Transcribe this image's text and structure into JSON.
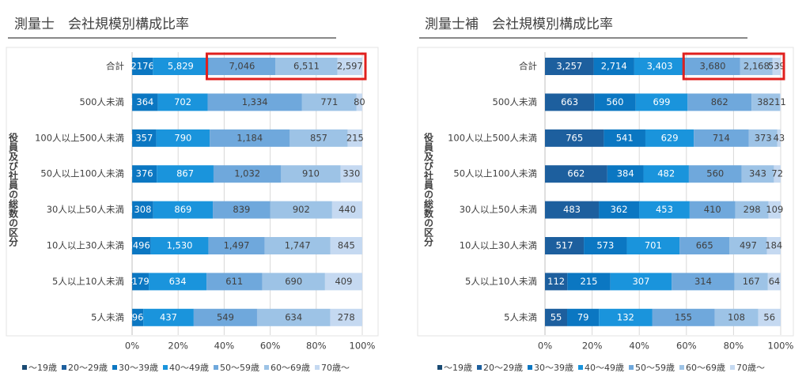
{
  "chart_data": [
    {
      "type": "stacked-bar-100",
      "title": "測量士　会社規模別構成比率",
      "y_label": "役員及び社員の総数の区分",
      "categories": [
        "合計",
        "500人未満",
        "100人以上500人未満",
        "50人以上100人未満",
        "30人以上50人未満",
        "10人以上30人未満",
        "5人以上10人未満",
        "5人未満"
      ],
      "xlim": [
        0,
        100
      ],
      "xticks": [
        {
          "value": 0,
          "label": "0%"
        },
        {
          "value": 20,
          "label": "20%"
        },
        {
          "value": 40,
          "label": "40%"
        },
        {
          "value": 60,
          "label": "60%"
        },
        {
          "value": 80,
          "label": "80%"
        },
        {
          "value": 100,
          "label": "100%"
        }
      ],
      "grid": true,
      "series": [
        {
          "name": "～19歳",
          "color": "#1a4a73",
          "values": [
            null,
            null,
            null,
            null,
            null,
            null,
            null,
            null
          ]
        },
        {
          "name": "20～29歳",
          "color": "#1d5f9e",
          "values": [
            8,
            1,
            1,
            1,
            1,
            1,
            4,
            1
          ]
        },
        {
          "name": "30～39歳",
          "color": "#0b77c2",
          "values": [
            2176,
            364,
            357,
            376,
            308,
            496,
            179,
            96
          ]
        },
        {
          "name": "40～49歳",
          "color": "#1a94dc",
          "values": [
            5829,
            702,
            790,
            867,
            869,
            1530,
            634,
            437
          ],
          "value_labels": [
            "5,829",
            "702",
            "790",
            "867",
            "869",
            "1,530",
            "634",
            "437"
          ]
        },
        {
          "name": "50～59歳",
          "color": "#6fa8dc",
          "values": [
            7046,
            1334,
            1184,
            1032,
            839,
            1497,
            611,
            549
          ],
          "value_labels": [
            "7,046",
            "1,334",
            "1,184",
            "1,032",
            "839",
            "1,497",
            "611",
            "549"
          ]
        },
        {
          "name": "60～69歳",
          "color": "#9dc3e6",
          "values": [
            6511,
            771,
            857,
            910,
            902,
            1747,
            690,
            634
          ],
          "value_labels": [
            "6,511",
            "771",
            "857",
            "910",
            "902",
            "1,747",
            "690",
            "634"
          ]
        },
        {
          "name": "70歳～",
          "color": "#c5d9f1",
          "values": [
            2597,
            80,
            215,
            330,
            440,
            845,
            409,
            278
          ],
          "value_labels": [
            "2,597",
            "80",
            "215",
            "330",
            "440",
            "845",
            "409",
            "278"
          ]
        }
      ]
    },
    {
      "type": "stacked-bar-100",
      "title": "測量士補　会社規模別構成比率",
      "y_label": "役員及び社員の総数の区分",
      "categories": [
        "合計",
        "500人未満",
        "100人以上500人未満",
        "50人以上100人未満",
        "30人以上50人未満",
        "10人以上30人未満",
        "5人以上10人未満",
        "5人未満"
      ],
      "xlim": [
        0,
        100
      ],
      "xticks": [
        {
          "value": 0,
          "label": "0%"
        },
        {
          "value": 20,
          "label": "20%"
        },
        {
          "value": 40,
          "label": "40%"
        },
        {
          "value": 60,
          "label": "60%"
        },
        {
          "value": 80,
          "label": "80%"
        },
        {
          "value": 100,
          "label": "100%"
        }
      ],
      "grid": true,
      "series": [
        {
          "name": "～19歳",
          "color": "#1a4a73",
          "values": [
            null,
            null,
            null,
            null,
            null,
            null,
            null,
            null
          ]
        },
        {
          "name": "20～29歳",
          "color": "#1d5f9e",
          "values": [
            3257,
            663,
            765,
            662,
            483,
            517,
            112,
            55
          ],
          "value_labels": [
            "3,257",
            "663",
            "765",
            "662",
            "483",
            "517",
            "112",
            "55"
          ]
        },
        {
          "name": "30～39歳",
          "color": "#0b77c2",
          "values": [
            2714,
            560,
            541,
            384,
            362,
            573,
            215,
            79
          ],
          "value_labels": [
            "2,714",
            "560",
            "541",
            "384",
            "362",
            "573",
            "215",
            "79"
          ]
        },
        {
          "name": "40～49歳",
          "color": "#1a94dc",
          "values": [
            3403,
            699,
            629,
            482,
            453,
            701,
            307,
            132
          ],
          "value_labels": [
            "3,403",
            "699",
            "629",
            "482",
            "453",
            "701",
            "307",
            "132"
          ]
        },
        {
          "name": "50～59歳",
          "color": "#6fa8dc",
          "values": [
            3680,
            862,
            714,
            560,
            410,
            665,
            314,
            155
          ],
          "value_labels": [
            "3,680",
            "862",
            "714",
            "560",
            "410",
            "665",
            "314",
            "155"
          ]
        },
        {
          "name": "60～69歳",
          "color": "#9dc3e6",
          "values": [
            2168,
            382,
            373,
            343,
            298,
            497,
            167,
            108
          ],
          "value_labels": [
            "2,168",
            "382",
            "373",
            "343",
            "298",
            "497",
            "167",
            "108"
          ]
        },
        {
          "name": "70歳～",
          "color": "#c5d9f1",
          "values": [
            539,
            11,
            43,
            72,
            109,
            184,
            64,
            56
          ]
        }
      ]
    }
  ]
}
